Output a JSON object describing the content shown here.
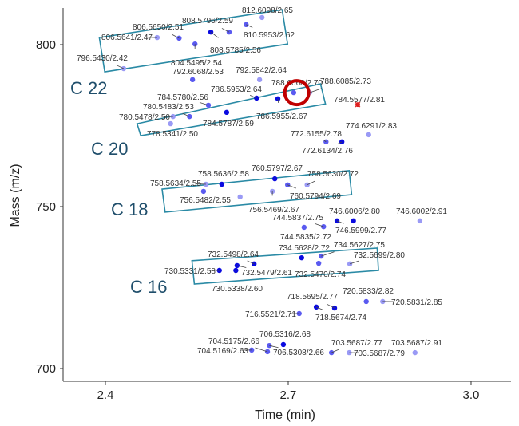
{
  "chart_data": {
    "type": "scatter",
    "xlabel": "Time (min)",
    "ylabel": "Mass (m/z)",
    "xlim": [
      2.33,
      3.08
    ],
    "ylim": [
      696,
      811
    ],
    "xticks": [
      {
        "v": 2.4,
        "label": "2.4"
      },
      {
        "v": 2.7,
        "label": "2.7"
      },
      {
        "v": 3.0,
        "label": "3.0"
      }
    ],
    "yticks": [
      {
        "v": 700,
        "label": "700"
      },
      {
        "v": 750,
        "label": "750"
      },
      {
        "v": 800,
        "label": "800"
      }
    ],
    "grid": false,
    "colors": {
      "dark": "#0a0ae0",
      "medium": "#5a5af0",
      "light": "#9a9af5",
      "highlight": "#e02020",
      "box": "#2a8aa5",
      "circle": "#c00000"
    },
    "groups": [
      {
        "label": "C 22",
        "corners": [
          [
            2.39,
            802.2
          ],
          [
            2.69,
            810.8
          ],
          [
            2.699,
            800.2
          ],
          [
            2.399,
            791.6
          ]
        ]
      },
      {
        "label": "C 20",
        "corners": [
          [
            2.452,
            775.6
          ],
          [
            2.753,
            787.9
          ],
          [
            2.761,
            781.7
          ],
          [
            2.458,
            771.9
          ]
        ]
      },
      {
        "label": "C 18",
        "corners": [
          [
            2.493,
            755.4
          ],
          [
            2.8,
            761.1
          ],
          [
            2.804,
            753.7
          ],
          [
            2.498,
            748.3
          ]
        ]
      },
      {
        "label": "C 16",
        "corners": [
          [
            2.542,
            733.3
          ],
          [
            2.846,
            737.2
          ],
          [
            2.848,
            730.3
          ],
          [
            2.546,
            726.1
          ]
        ]
      }
    ],
    "highlight_circle": {
      "x": 2.714,
      "y": 785.2
    },
    "points": [
      {
        "x": 2.43,
        "y": 792.6,
        "label": "796.5430/2.42",
        "shade": "light"
      },
      {
        "x": 2.485,
        "y": 802.2,
        "label": "806.5641/2.47",
        "shade": "light"
      },
      {
        "x": 2.521,
        "y": 802.0,
        "label": "806.5650/2.51",
        "shade": "medium"
      },
      {
        "x": 2.547,
        "y": 800.2,
        "label": "804.5495/2.54",
        "shade": "medium"
      },
      {
        "x": 2.603,
        "y": 803.9,
        "label": "808.5796/2.59",
        "shade": "medium"
      },
      {
        "x": 2.573,
        "y": 803.9,
        "label": "808.5785/2.56",
        "shade": "dark"
      },
      {
        "x": 2.631,
        "y": 806.2,
        "label": "810.5953/2.62",
        "shade": "medium"
      },
      {
        "x": 2.657,
        "y": 808.4,
        "label": "812.6098/2.65",
        "shade": "light"
      },
      {
        "x": 2.543,
        "y": 789.2,
        "label": "792.6068/2.53",
        "shade": "medium"
      },
      {
        "x": 2.653,
        "y": 789.2,
        "label": "792.5842/2.64",
        "shade": "light"
      },
      {
        "x": 2.709,
        "y": 785.2,
        "label": "788.6068/2.70",
        "shade": "medium"
      },
      {
        "x": 2.735,
        "y": 785.2,
        "label": "788.6085/2.73",
        "shade": "light"
      },
      {
        "x": 2.648,
        "y": 783.5,
        "label": "786.5953/2.64",
        "shade": "dark"
      },
      {
        "x": 2.683,
        "y": 783.3,
        "label": "786.5955/2.67",
        "shade": "dark"
      },
      {
        "x": 2.569,
        "y": 781.3,
        "label": "784.5780/2.56",
        "shade": "medium"
      },
      {
        "x": 2.599,
        "y": 779.1,
        "label": "784.5787/2.59",
        "shade": "dark"
      },
      {
        "x": 2.538,
        "y": 777.8,
        "label": "780.5483/2.53",
        "shade": "medium"
      },
      {
        "x": 2.511,
        "y": 777.8,
        "label": "780.5478/2.50",
        "shade": "light"
      },
      {
        "x": 2.507,
        "y": 775.6,
        "label": "778.5341/2.50",
        "shade": "light"
      },
      {
        "x": 2.814,
        "y": 781.5,
        "label": "784.5577/2.81",
        "shade": "highlight"
      },
      {
        "x": 2.832,
        "y": 772.2,
        "label": "774.6291/2.83",
        "shade": "light"
      },
      {
        "x": 2.762,
        "y": 770.0,
        "label": "772.6155/2.78",
        "shade": "medium"
      },
      {
        "x": 2.788,
        "y": 770.0,
        "label": "772.6134/2.76",
        "shade": "dark"
      },
      {
        "x": 2.591,
        "y": 756.9,
        "label": "758.5636/2.58",
        "shade": "dark"
      },
      {
        "x": 2.565,
        "y": 756.9,
        "label": "758.5634/2.55",
        "shade": "light"
      },
      {
        "x": 2.678,
        "y": 758.6,
        "label": "760.5797/2.67",
        "shade": "dark"
      },
      {
        "x": 2.699,
        "y": 756.7,
        "label": "760.5794/2.69",
        "shade": "medium"
      },
      {
        "x": 2.731,
        "y": 756.7,
        "label": "758.5630/2.72",
        "shade": "light"
      },
      {
        "x": 2.561,
        "y": 754.7,
        "label": "756.5482/2.55",
        "shade": "medium"
      },
      {
        "x": 2.674,
        "y": 754.7,
        "label": "756.5469/2.67",
        "shade": "light"
      },
      {
        "x": 2.621,
        "y": 753.0,
        "label": "",
        "shade": "light"
      },
      {
        "x": 2.758,
        "y": 743.8,
        "label": "744.5837/2.75",
        "shade": "medium"
      },
      {
        "x": 2.726,
        "y": 743.6,
        "label": "744.5835/2.72",
        "shade": "medium"
      },
      {
        "x": 2.807,
        "y": 745.6,
        "label": "746.6006/2.80",
        "shade": "dark"
      },
      {
        "x": 2.78,
        "y": 745.6,
        "label": "746.5999/2.77",
        "shade": "dark"
      },
      {
        "x": 2.916,
        "y": 745.6,
        "label": "746.6002/2.91",
        "shade": "light"
      },
      {
        "x": 2.722,
        "y": 734.2,
        "label": "734.5628/2.72",
        "shade": "dark"
      },
      {
        "x": 2.754,
        "y": 734.7,
        "label": "734.5627/2.75",
        "shade": "medium"
      },
      {
        "x": 2.801,
        "y": 732.3,
        "label": "732.5699/2.80",
        "shade": "light"
      },
      {
        "x": 2.75,
        "y": 732.5,
        "label": "732.5470/2.74",
        "shade": "medium"
      },
      {
        "x": 2.644,
        "y": 732.3,
        "label": "732.5498/2.64",
        "shade": "dark"
      },
      {
        "x": 2.616,
        "y": 731.8,
        "label": "732.5479/2.61",
        "shade": "dark"
      },
      {
        "x": 2.587,
        "y": 730.3,
        "label": "730.5331/2.58",
        "shade": "dark"
      },
      {
        "x": 2.614,
        "y": 730.3,
        "label": "730.5338/2.60",
        "shade": "dark"
      },
      {
        "x": 2.776,
        "y": 718.7,
        "label": "718.5695/2.77",
        "shade": "dark"
      },
      {
        "x": 2.746,
        "y": 719.0,
        "label": "718.5674/2.74",
        "shade": "dark"
      },
      {
        "x": 2.718,
        "y": 717.0,
        "label": "716.5521/2.71",
        "shade": "medium"
      },
      {
        "x": 2.828,
        "y": 720.7,
        "label": "720.5833/2.82",
        "shade": "medium"
      },
      {
        "x": 2.855,
        "y": 720.7,
        "label": "720.5831/2.85",
        "shade": "light"
      },
      {
        "x": 2.692,
        "y": 707.4,
        "label": "706.5316/2.68",
        "shade": "dark"
      },
      {
        "x": 2.669,
        "y": 707.1,
        "label": "706.5308/2.66",
        "shade": "medium"
      },
      {
        "x": 2.666,
        "y": 705.2,
        "label": "704.5175/2.66",
        "shade": "medium"
      },
      {
        "x": 2.64,
        "y": 705.7,
        "label": "704.5169/2.63",
        "shade": "medium"
      },
      {
        "x": 2.771,
        "y": 704.9,
        "label": "703.5687/2.77",
        "shade": "medium"
      },
      {
        "x": 2.8,
        "y": 704.9,
        "label": "703.5687/2.79",
        "shade": "light"
      },
      {
        "x": 2.908,
        "y": 704.9,
        "label": "703.5687/2.91",
        "shade": "light"
      }
    ]
  }
}
